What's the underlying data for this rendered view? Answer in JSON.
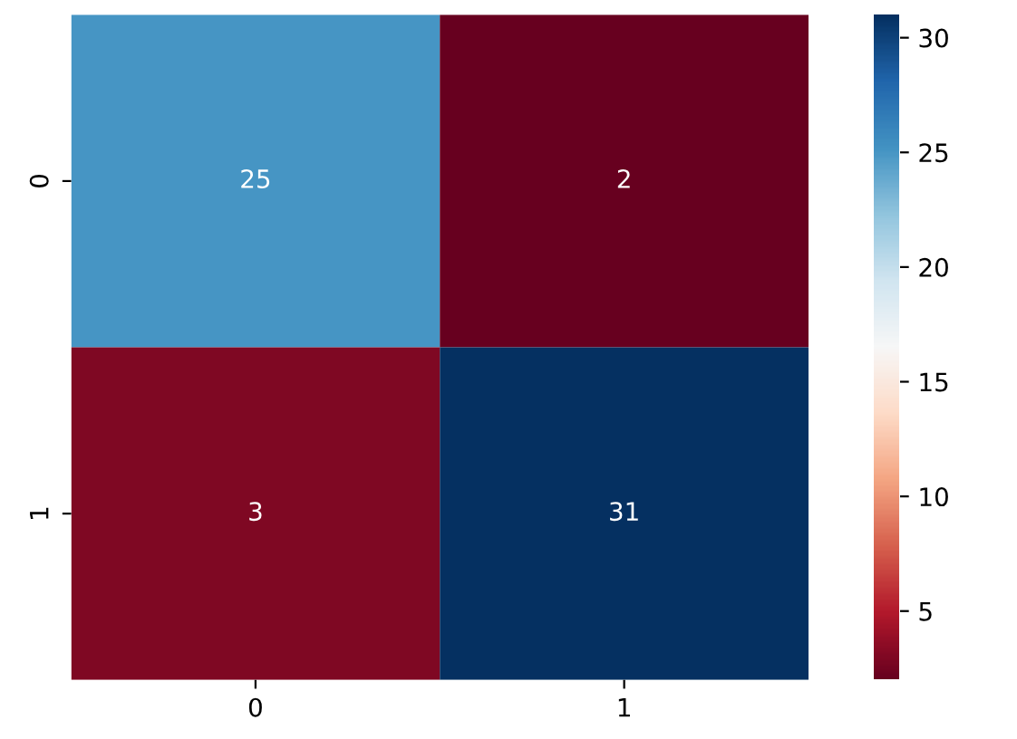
{
  "chart_data": {
    "type": "heatmap",
    "categories": [
      "0",
      "1"
    ],
    "y_categories": [
      "0",
      "1"
    ],
    "cells": [
      [
        25,
        2
      ],
      [
        3,
        31
      ]
    ],
    "clim": [
      2,
      31
    ],
    "cticks": [
      5,
      10,
      15,
      20,
      25,
      30
    ],
    "data_labels": true,
    "grid": false,
    "legend": false
  }
}
